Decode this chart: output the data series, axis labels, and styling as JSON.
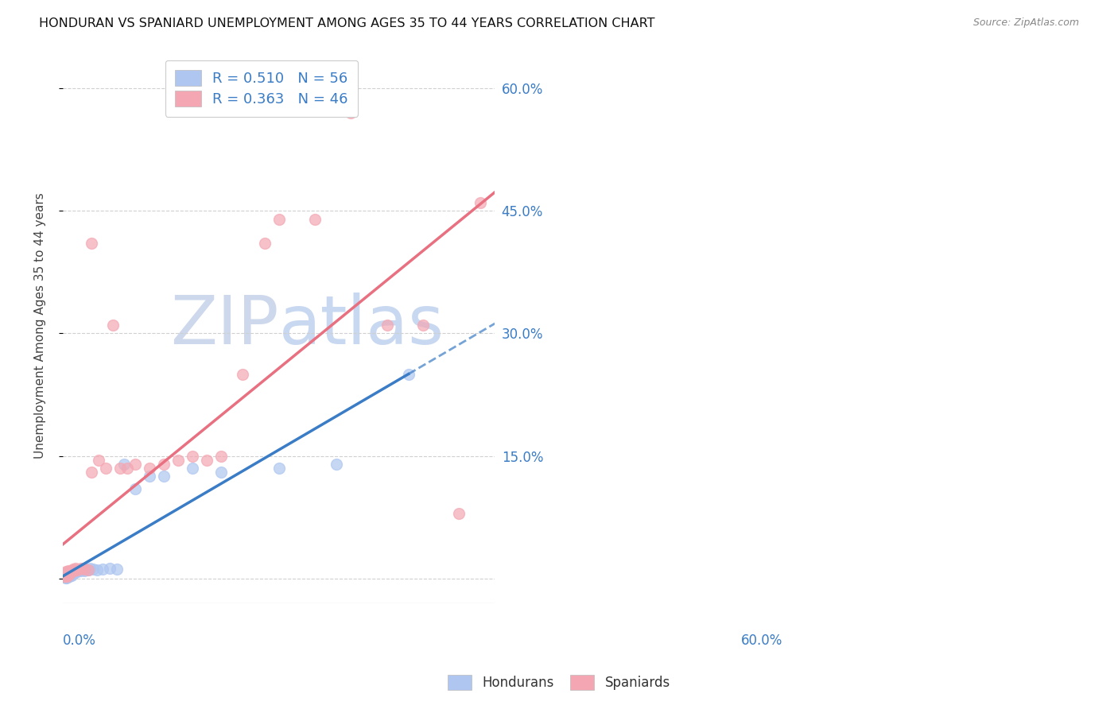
{
  "title": "HONDURAN VS SPANIARD UNEMPLOYMENT AMONG AGES 35 TO 44 YEARS CORRELATION CHART",
  "source": "Source: ZipAtlas.com",
  "ylabel": "Unemployment Among Ages 35 to 44 years",
  "xlim": [
    0.0,
    0.6
  ],
  "ylim": [
    -0.03,
    0.65
  ],
  "yticks": [
    0.0,
    0.15,
    0.3,
    0.45,
    0.6
  ],
  "ytick_labels": [
    "",
    "15.0%",
    "30.0%",
    "45.0%",
    "60.0%"
  ],
  "honduran_R": 0.51,
  "honduran_N": 56,
  "spaniard_R": 0.363,
  "spaniard_N": 46,
  "honduran_color": "#aec6f0",
  "spaniard_color": "#f4a7b3",
  "honduran_line_color": "#3a7cc5",
  "spaniard_line_color": "#e87080",
  "background_color": "#ffffff",
  "watermark_color": "#cdd8ec",
  "grid_color": "#d0d0d0",
  "honduran_x": [
    0.002,
    0.003,
    0.003,
    0.004,
    0.004,
    0.004,
    0.005,
    0.005,
    0.005,
    0.006,
    0.006,
    0.006,
    0.006,
    0.007,
    0.007,
    0.007,
    0.008,
    0.008,
    0.008,
    0.009,
    0.009,
    0.01,
    0.01,
    0.011,
    0.011,
    0.012,
    0.012,
    0.013,
    0.014,
    0.015,
    0.016,
    0.017,
    0.018,
    0.02,
    0.022,
    0.024,
    0.026,
    0.028,
    0.03,
    0.032,
    0.035,
    0.038,
    0.042,
    0.048,
    0.055,
    0.065,
    0.075,
    0.085,
    0.1,
    0.12,
    0.14,
    0.18,
    0.22,
    0.3,
    0.38,
    0.48
  ],
  "honduran_y": [
    0.002,
    0.003,
    0.005,
    0.001,
    0.003,
    0.005,
    0.001,
    0.003,
    0.006,
    0.002,
    0.004,
    0.006,
    0.008,
    0.002,
    0.004,
    0.007,
    0.003,
    0.005,
    0.008,
    0.003,
    0.006,
    0.004,
    0.007,
    0.005,
    0.008,
    0.004,
    0.007,
    0.006,
    0.008,
    0.007,
    0.009,
    0.008,
    0.01,
    0.009,
    0.011,
    0.01,
    0.012,
    0.011,
    0.01,
    0.012,
    0.011,
    0.013,
    0.012,
    0.011,
    0.012,
    0.013,
    0.012,
    0.14,
    0.11,
    0.125,
    0.125,
    0.135,
    0.13,
    0.135,
    0.14,
    0.25
  ],
  "spaniard_x": [
    0.002,
    0.003,
    0.004,
    0.004,
    0.005,
    0.005,
    0.006,
    0.006,
    0.007,
    0.007,
    0.008,
    0.008,
    0.009,
    0.01,
    0.011,
    0.012,
    0.014,
    0.016,
    0.018,
    0.02,
    0.025,
    0.03,
    0.035,
    0.04,
    0.05,
    0.06,
    0.07,
    0.08,
    0.09,
    0.1,
    0.12,
    0.14,
    0.16,
    0.18,
    0.2,
    0.22,
    0.25,
    0.28,
    0.3,
    0.35,
    0.4,
    0.45,
    0.5,
    0.55,
    0.58,
    0.04
  ],
  "spaniard_y": [
    0.003,
    0.005,
    0.003,
    0.008,
    0.004,
    0.009,
    0.003,
    0.007,
    0.004,
    0.009,
    0.005,
    0.01,
    0.006,
    0.007,
    0.009,
    0.01,
    0.012,
    0.01,
    0.013,
    0.011,
    0.013,
    0.012,
    0.011,
    0.13,
    0.145,
    0.135,
    0.31,
    0.135,
    0.135,
    0.14,
    0.135,
    0.14,
    0.145,
    0.15,
    0.145,
    0.15,
    0.25,
    0.41,
    0.44,
    0.44,
    0.57,
    0.31,
    0.31,
    0.08,
    0.46,
    0.41
  ],
  "honduran_trendline_x": [
    0.0,
    0.48
  ],
  "honduran_trendline_solid_end": 0.48,
  "spaniard_trendline_x": [
    0.0,
    0.6
  ]
}
